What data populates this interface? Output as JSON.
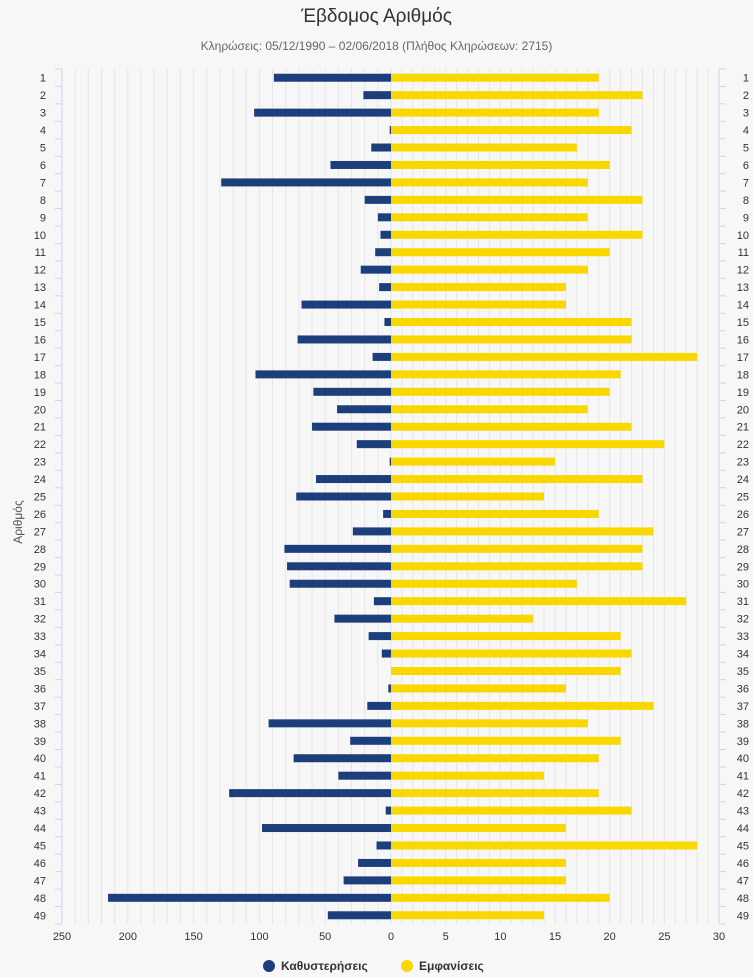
{
  "chart_data": {
    "type": "bar",
    "orientation": "horizontal",
    "title": "Έβδομος Αριθμός",
    "subtitle": "Κληρώσεις: 05/12/1990 – 02/06/2018 (Πλήθος Κληρώσεων: 2715)",
    "ylabel": "Αριθμός",
    "categories": [
      "1",
      "2",
      "3",
      "4",
      "5",
      "6",
      "7",
      "8",
      "9",
      "10",
      "11",
      "12",
      "13",
      "14",
      "15",
      "16",
      "17",
      "18",
      "19",
      "20",
      "21",
      "22",
      "23",
      "24",
      "25",
      "26",
      "27",
      "28",
      "29",
      "30",
      "31",
      "32",
      "33",
      "34",
      "35",
      "36",
      "37",
      "38",
      "39",
      "40",
      "41",
      "42",
      "43",
      "44",
      "45",
      "46",
      "47",
      "48",
      "49"
    ],
    "left_axis": {
      "range": [
        250,
        0
      ],
      "ticks": [
        "250",
        "200",
        "150",
        "100",
        "50",
        "0"
      ]
    },
    "right_axis": {
      "range": [
        0,
        30
      ],
      "ticks": [
        "0",
        "5",
        "10",
        "15",
        "20",
        "25",
        "30"
      ]
    },
    "series": [
      {
        "name": "Καθυστερήσεις",
        "color": "#1c3f7b",
        "side": "left",
        "values": [
          89,
          21,
          104,
          1,
          15,
          46,
          129,
          20,
          10,
          8,
          12,
          23,
          9,
          68,
          5,
          71,
          14,
          103,
          59,
          41,
          60,
          26,
          1,
          57,
          72,
          6,
          29,
          81,
          79,
          77,
          13,
          43,
          17,
          7,
          0,
          2,
          18,
          93,
          31,
          74,
          40,
          123,
          4,
          98,
          11,
          25,
          36,
          215,
          48
        ]
      },
      {
        "name": "Εμφανίσεις",
        "color": "#f8d800",
        "side": "right",
        "values": [
          19,
          23,
          19,
          22,
          17,
          20,
          18,
          23,
          18,
          23,
          20,
          18,
          16,
          16,
          22,
          22,
          28,
          21,
          20,
          18,
          22,
          25,
          15,
          23,
          14,
          19,
          24,
          23,
          23,
          17,
          27,
          13,
          21,
          22,
          21,
          16,
          24,
          18,
          21,
          19,
          14,
          19,
          22,
          16,
          28,
          16,
          16,
          20,
          14
        ]
      }
    ],
    "grid": true,
    "legend": "bottom-center"
  },
  "legend": {
    "items": [
      {
        "label": "Καθυστερήσεις",
        "color": "#1c3f7b"
      },
      {
        "label": "Εμφανίσεις",
        "color": "#f8d800"
      }
    ]
  }
}
